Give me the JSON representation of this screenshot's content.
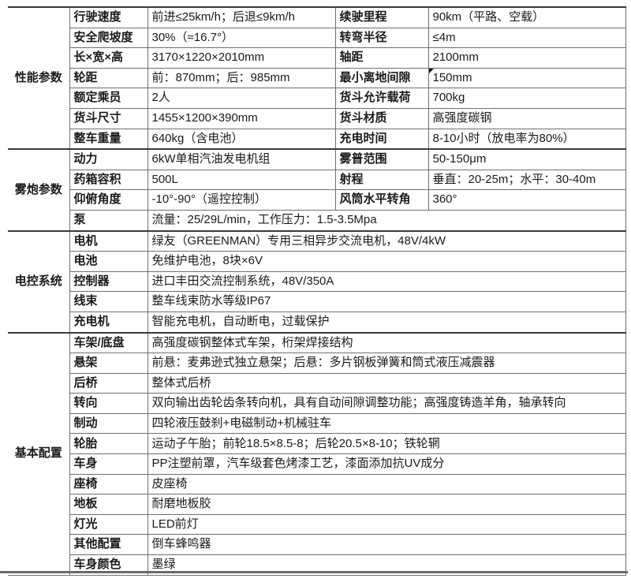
{
  "colors": {
    "grid_line": "#6f6f6f",
    "section_divider": "#3a3a3a",
    "text": "#1a1a1a",
    "bottom_rule": "#6a6a6a",
    "corner_marker": "#151515"
  },
  "table": {
    "sections": [
      {
        "name": "性能参数",
        "rows": [
          {
            "cells": [
              {
                "label": "行驶速度",
                "value": "前进≤25km/h；后退≤9km/h"
              },
              {
                "label": "续驶里程",
                "value": "90km（平路、空载）"
              }
            ]
          },
          {
            "cells": [
              {
                "label": "安全爬坡度",
                "value": "30%（≈16.7°）"
              },
              {
                "label": "转弯半径",
                "value": "≤4m"
              }
            ]
          },
          {
            "cells": [
              {
                "label": "长×宽×高",
                "value": "3170×1220×2010mm"
              },
              {
                "label": "轴距",
                "value": "2100mm"
              }
            ]
          },
          {
            "cells": [
              {
                "label": "轮距",
                "value": "前：870mm；后：985mm"
              },
              {
                "label": "最小离地间隙",
                "value": "150mm",
                "marker": true
              }
            ]
          },
          {
            "cells": [
              {
                "label": "额定乘员",
                "value": "2人"
              },
              {
                "label": "货斗允许载荷",
                "value": "700kg"
              }
            ]
          },
          {
            "cells": [
              {
                "label": "货斗尺寸",
                "value": "1455×1200×390mm"
              },
              {
                "label": "货斗材质",
                "value": "高强度碳钢"
              }
            ]
          },
          {
            "cells": [
              {
                "label": "整车重量",
                "value": "640kg（含电池）"
              },
              {
                "label": "充电时间",
                "value": "8-10小时（放电率为80%）"
              }
            ]
          }
        ]
      },
      {
        "name": "雾炮参数",
        "rows": [
          {
            "cells": [
              {
                "label": "动力",
                "value": "6kW单相汽油发电机组"
              },
              {
                "label": "雾普范围",
                "value": "50-150μm"
              }
            ]
          },
          {
            "cells": [
              {
                "label": "药箱容积",
                "value": "500L"
              },
              {
                "label": "射程",
                "value": "垂直：20-25m；水平：30-40m"
              }
            ]
          },
          {
            "cells": [
              {
                "label": "仰俯角度",
                "value": "-10°-90°（遥控控制）"
              },
              {
                "label": "风筒水平转角",
                "value": "360°"
              }
            ]
          },
          {
            "cells": [
              {
                "label": "泵",
                "value": "流量：25/29L/min，工作压力：1.5-3.5Mpa",
                "span": true
              }
            ]
          }
        ]
      },
      {
        "name": "电控系统",
        "rows": [
          {
            "cells": [
              {
                "label": "电机",
                "value": "绿友（GREENMAN）专用三相异步交流电机，48V/4kW",
                "span": true
              }
            ]
          },
          {
            "cells": [
              {
                "label": "电池",
                "value": "免维护电池，8块×6V",
                "span": true
              }
            ]
          },
          {
            "cells": [
              {
                "label": "控制器",
                "value": "进口丰田交流控制系统，48V/350A",
                "span": true
              }
            ]
          },
          {
            "cells": [
              {
                "label": "线束",
                "value": "整车线束防水等级IP67",
                "span": true
              }
            ]
          },
          {
            "cells": [
              {
                "label": "充电机",
                "value": "智能充电机，自动断电，过载保护",
                "span": true
              }
            ]
          }
        ]
      },
      {
        "name": "基本配置",
        "rows": [
          {
            "cells": [
              {
                "label": "车架/底盘",
                "value": "高强度碳钢整体式车架，桁架焊接结构",
                "span": true
              }
            ]
          },
          {
            "cells": [
              {
                "label": "悬架",
                "value": "前悬：麦弗逊式独立悬架；后悬：多片钢板弹簧和筒式液压减震器",
                "span": true
              }
            ]
          },
          {
            "cells": [
              {
                "label": "后桥",
                "value": "整体式后桥",
                "span": true
              }
            ]
          },
          {
            "cells": [
              {
                "label": "转向",
                "value": "双向输出齿轮齿条转向机，具有自动间隙调整功能；高强度铸造羊角，轴承转向",
                "span": true
              }
            ]
          },
          {
            "cells": [
              {
                "label": "制动",
                "value": "四轮液压鼓刹+电磁制动+机械驻车",
                "span": true
              }
            ]
          },
          {
            "cells": [
              {
                "label": "轮胎",
                "value": "运动子午胎；前轮18.5×8.5-8；后轮20.5×8-10；铁轮辋",
                "span": true
              }
            ]
          },
          {
            "cells": [
              {
                "label": "车身",
                "value": "PP注塑前罩，汽车级套色烤漆工艺，漆面添加抗UV成分",
                "span": true
              }
            ]
          },
          {
            "cells": [
              {
                "label": "座椅",
                "value": "皮座椅",
                "span": true
              }
            ]
          },
          {
            "cells": [
              {
                "label": "地板",
                "value": "耐磨地板胶",
                "span": true
              }
            ]
          },
          {
            "cells": [
              {
                "label": "灯光",
                "value": "LED前灯",
                "span": true
              }
            ]
          },
          {
            "cells": [
              {
                "label": "其他配置",
                "value": "倒车蜂鸣器",
                "span": true
              }
            ]
          },
          {
            "cells": [
              {
                "label": "车身颜色",
                "value": "墨绿",
                "span": true
              }
            ]
          }
        ]
      }
    ]
  }
}
